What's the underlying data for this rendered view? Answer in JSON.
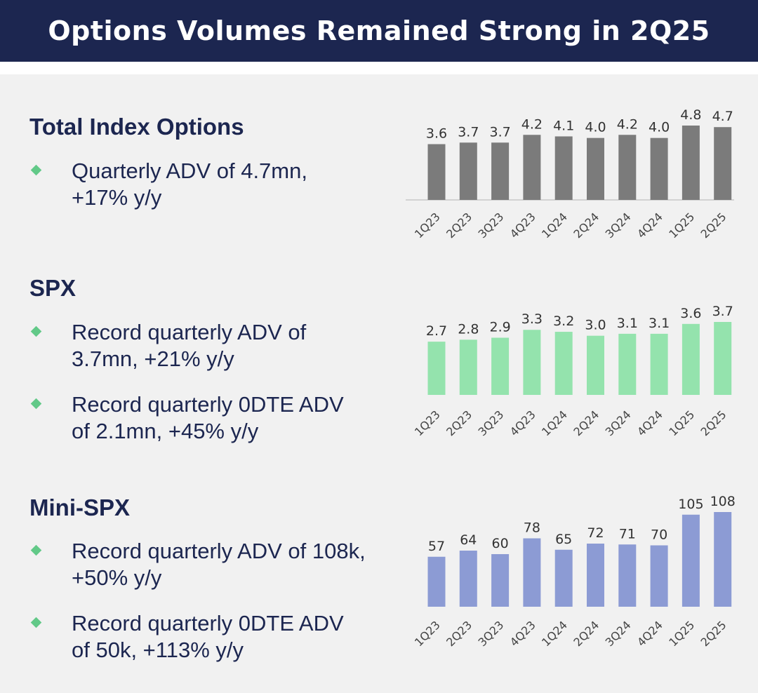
{
  "header": {
    "title": "Options Volumes Remained Strong in 2Q25"
  },
  "sections": [
    {
      "heading": "Total Index Options",
      "bullets": [
        "Quarterly ADV of 4.7mn, +17% y/y"
      ]
    },
    {
      "heading": "SPX",
      "bullets": [
        "Record quarterly ADV of 3.7mn, +21% y/y",
        "Record quarterly 0DTE ADV of 2.1mn, +45% y/y"
      ]
    },
    {
      "heading": "Mini-SPX",
      "bullets": [
        "Record quarterly ADV of 108k, +50% y/y",
        "Record quarterly 0DTE ADV of 50k, +113% y/y"
      ]
    }
  ],
  "chart_data": [
    {
      "type": "bar",
      "categories": [
        "1Q23",
        "2Q23",
        "3Q23",
        "4Q23",
        "1Q24",
        "2Q24",
        "3Q24",
        "4Q24",
        "1Q25",
        "2Q25"
      ],
      "values": [
        3.6,
        3.7,
        3.7,
        4.2,
        4.1,
        4.0,
        4.2,
        4.0,
        4.8,
        4.7
      ],
      "labels": [
        "3.6",
        "3.7",
        "3.7",
        "4.2",
        "4.1",
        "4.0",
        "4.2",
        "4.0",
        "4.8",
        "4.7"
      ],
      "color": "#7b7b7b",
      "ylim": [
        0,
        4.8
      ],
      "grid": false,
      "axis_line": true
    },
    {
      "type": "bar",
      "categories": [
        "1Q23",
        "2Q23",
        "3Q23",
        "4Q23",
        "1Q24",
        "2Q24",
        "3Q24",
        "4Q24",
        "1Q25",
        "2Q25"
      ],
      "values": [
        2.7,
        2.8,
        2.9,
        3.3,
        3.2,
        3.0,
        3.1,
        3.1,
        3.6,
        3.7
      ],
      "labels": [
        "2.7",
        "2.8",
        "2.9",
        "3.3",
        "3.2",
        "3.0",
        "3.1",
        "3.1",
        "3.6",
        "3.7"
      ],
      "color": "#94e3ad",
      "ylim": [
        0,
        3.7
      ],
      "grid": false,
      "axis_line": false
    },
    {
      "type": "bar",
      "categories": [
        "1Q23",
        "2Q23",
        "3Q23",
        "4Q23",
        "1Q24",
        "2Q24",
        "3Q24",
        "4Q24",
        "1Q25",
        "2Q25"
      ],
      "values": [
        57,
        64,
        60,
        78,
        65,
        72,
        71,
        70,
        105,
        108
      ],
      "labels": [
        "57",
        "64",
        "60",
        "78",
        "65",
        "72",
        "71",
        "70",
        "105",
        "108"
      ],
      "color": "#8c9bd4",
      "ylim": [
        0,
        108
      ],
      "grid": false,
      "axis_line": false
    }
  ]
}
